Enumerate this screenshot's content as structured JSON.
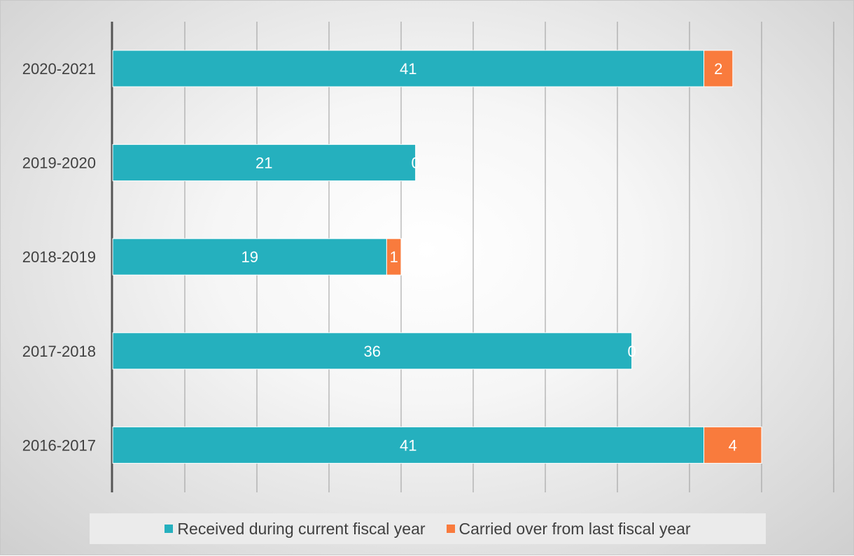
{
  "chart_data": {
    "type": "bar",
    "orientation": "horizontal",
    "stacked": true,
    "categories": [
      "2020-2021",
      "2019-2020",
      "2018-2019",
      "2017-2018",
      "2016-2017"
    ],
    "series": [
      {
        "name": "Received during current fiscal year",
        "color": "#25B0BE",
        "values": [
          41,
          21,
          19,
          36,
          41
        ]
      },
      {
        "name": "Carried over from last fiscal year",
        "color": "#F97B3D",
        "values": [
          2,
          0,
          1,
          0,
          4
        ]
      }
    ],
    "xlim": [
      0,
      50
    ],
    "grid": true,
    "legend": "bottom"
  }
}
